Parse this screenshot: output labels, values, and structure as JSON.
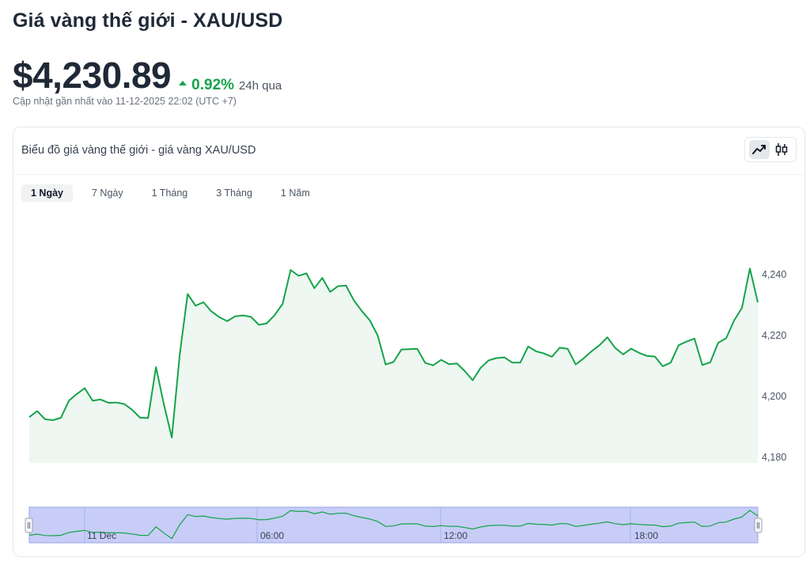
{
  "header": {
    "title": "Giá vàng thế giới - XAU/USD",
    "price": "$4,230.89",
    "change_pct": "0.92%",
    "change_period": "24h qua",
    "updated": "Cập nhật gần nhất vào 11-12-2025 22:02 (UTC +7)",
    "up_color": "#16a34a"
  },
  "card": {
    "title": "Biểu đồ giá vàng thế giới - giá vàng XAU/USD",
    "toggle": [
      {
        "icon": "line-chart-icon",
        "active": true
      },
      {
        "icon": "candlestick-icon",
        "active": false
      }
    ]
  },
  "tabs": [
    {
      "label": "1 Ngày",
      "active": true
    },
    {
      "label": "7 Ngày",
      "active": false
    },
    {
      "label": "1 Tháng",
      "active": false
    },
    {
      "label": "3 Tháng",
      "active": false
    },
    {
      "label": "1 Năm",
      "active": false
    }
  ],
  "navigator": {
    "labels": [
      "11 Dec",
      "06:00",
      "12:00",
      "18:00"
    ]
  },
  "chart_data": {
    "type": "area",
    "line_color": "#16a34a",
    "fill_color": "#eef7f2",
    "ylim": [
      4180,
      4250
    ],
    "yticks": [
      4180,
      4200,
      4220,
      4240
    ],
    "ytick_labels": [
      "4,180",
      "4,200",
      "4,220",
      "4,240"
    ],
    "grid": false,
    "values": [
      4193.2,
      4195.2,
      4192.5,
      4192.2,
      4193.0,
      4198.6,
      4200.8,
      4202.7,
      4198.6,
      4199.0,
      4197.9,
      4198.0,
      4197.5,
      4195.6,
      4193.0,
      4192.9,
      4209.6,
      4197.4,
      4186.5,
      4213.7,
      4233.6,
      4229.8,
      4230.9,
      4227.9,
      4226.0,
      4224.7,
      4226.3,
      4226.6,
      4226.1,
      4223.5,
      4224.0,
      4226.7,
      4230.4,
      4241.5,
      4239.6,
      4240.4,
      4235.5,
      4238.9,
      4234.3,
      4236.2,
      4236.4,
      4231.5,
      4228.0,
      4225.0,
      4220.0,
      4210.5,
      4211.3,
      4215.4,
      4215.5,
      4215.6,
      4211.0,
      4210.2,
      4212.0,
      4210.6,
      4210.8,
      4208.3,
      4205.3,
      4209.4,
      4211.8,
      4212.6,
      4212.8,
      4211.1,
      4211.1,
      4216.4,
      4214.8,
      4214.1,
      4213.0,
      4216.0,
      4215.6,
      4210.5,
      4212.5,
      4214.8,
      4216.8,
      4219.4,
      4215.9,
      4213.8,
      4215.7,
      4214.3,
      4213.3,
      4213.1,
      4209.9,
      4211.1,
      4216.8,
      4218.0,
      4219.0,
      4210.3,
      4211.2,
      4217.6,
      4219.1,
      4224.9,
      4229.1,
      4242.0,
      4230.9
    ]
  }
}
